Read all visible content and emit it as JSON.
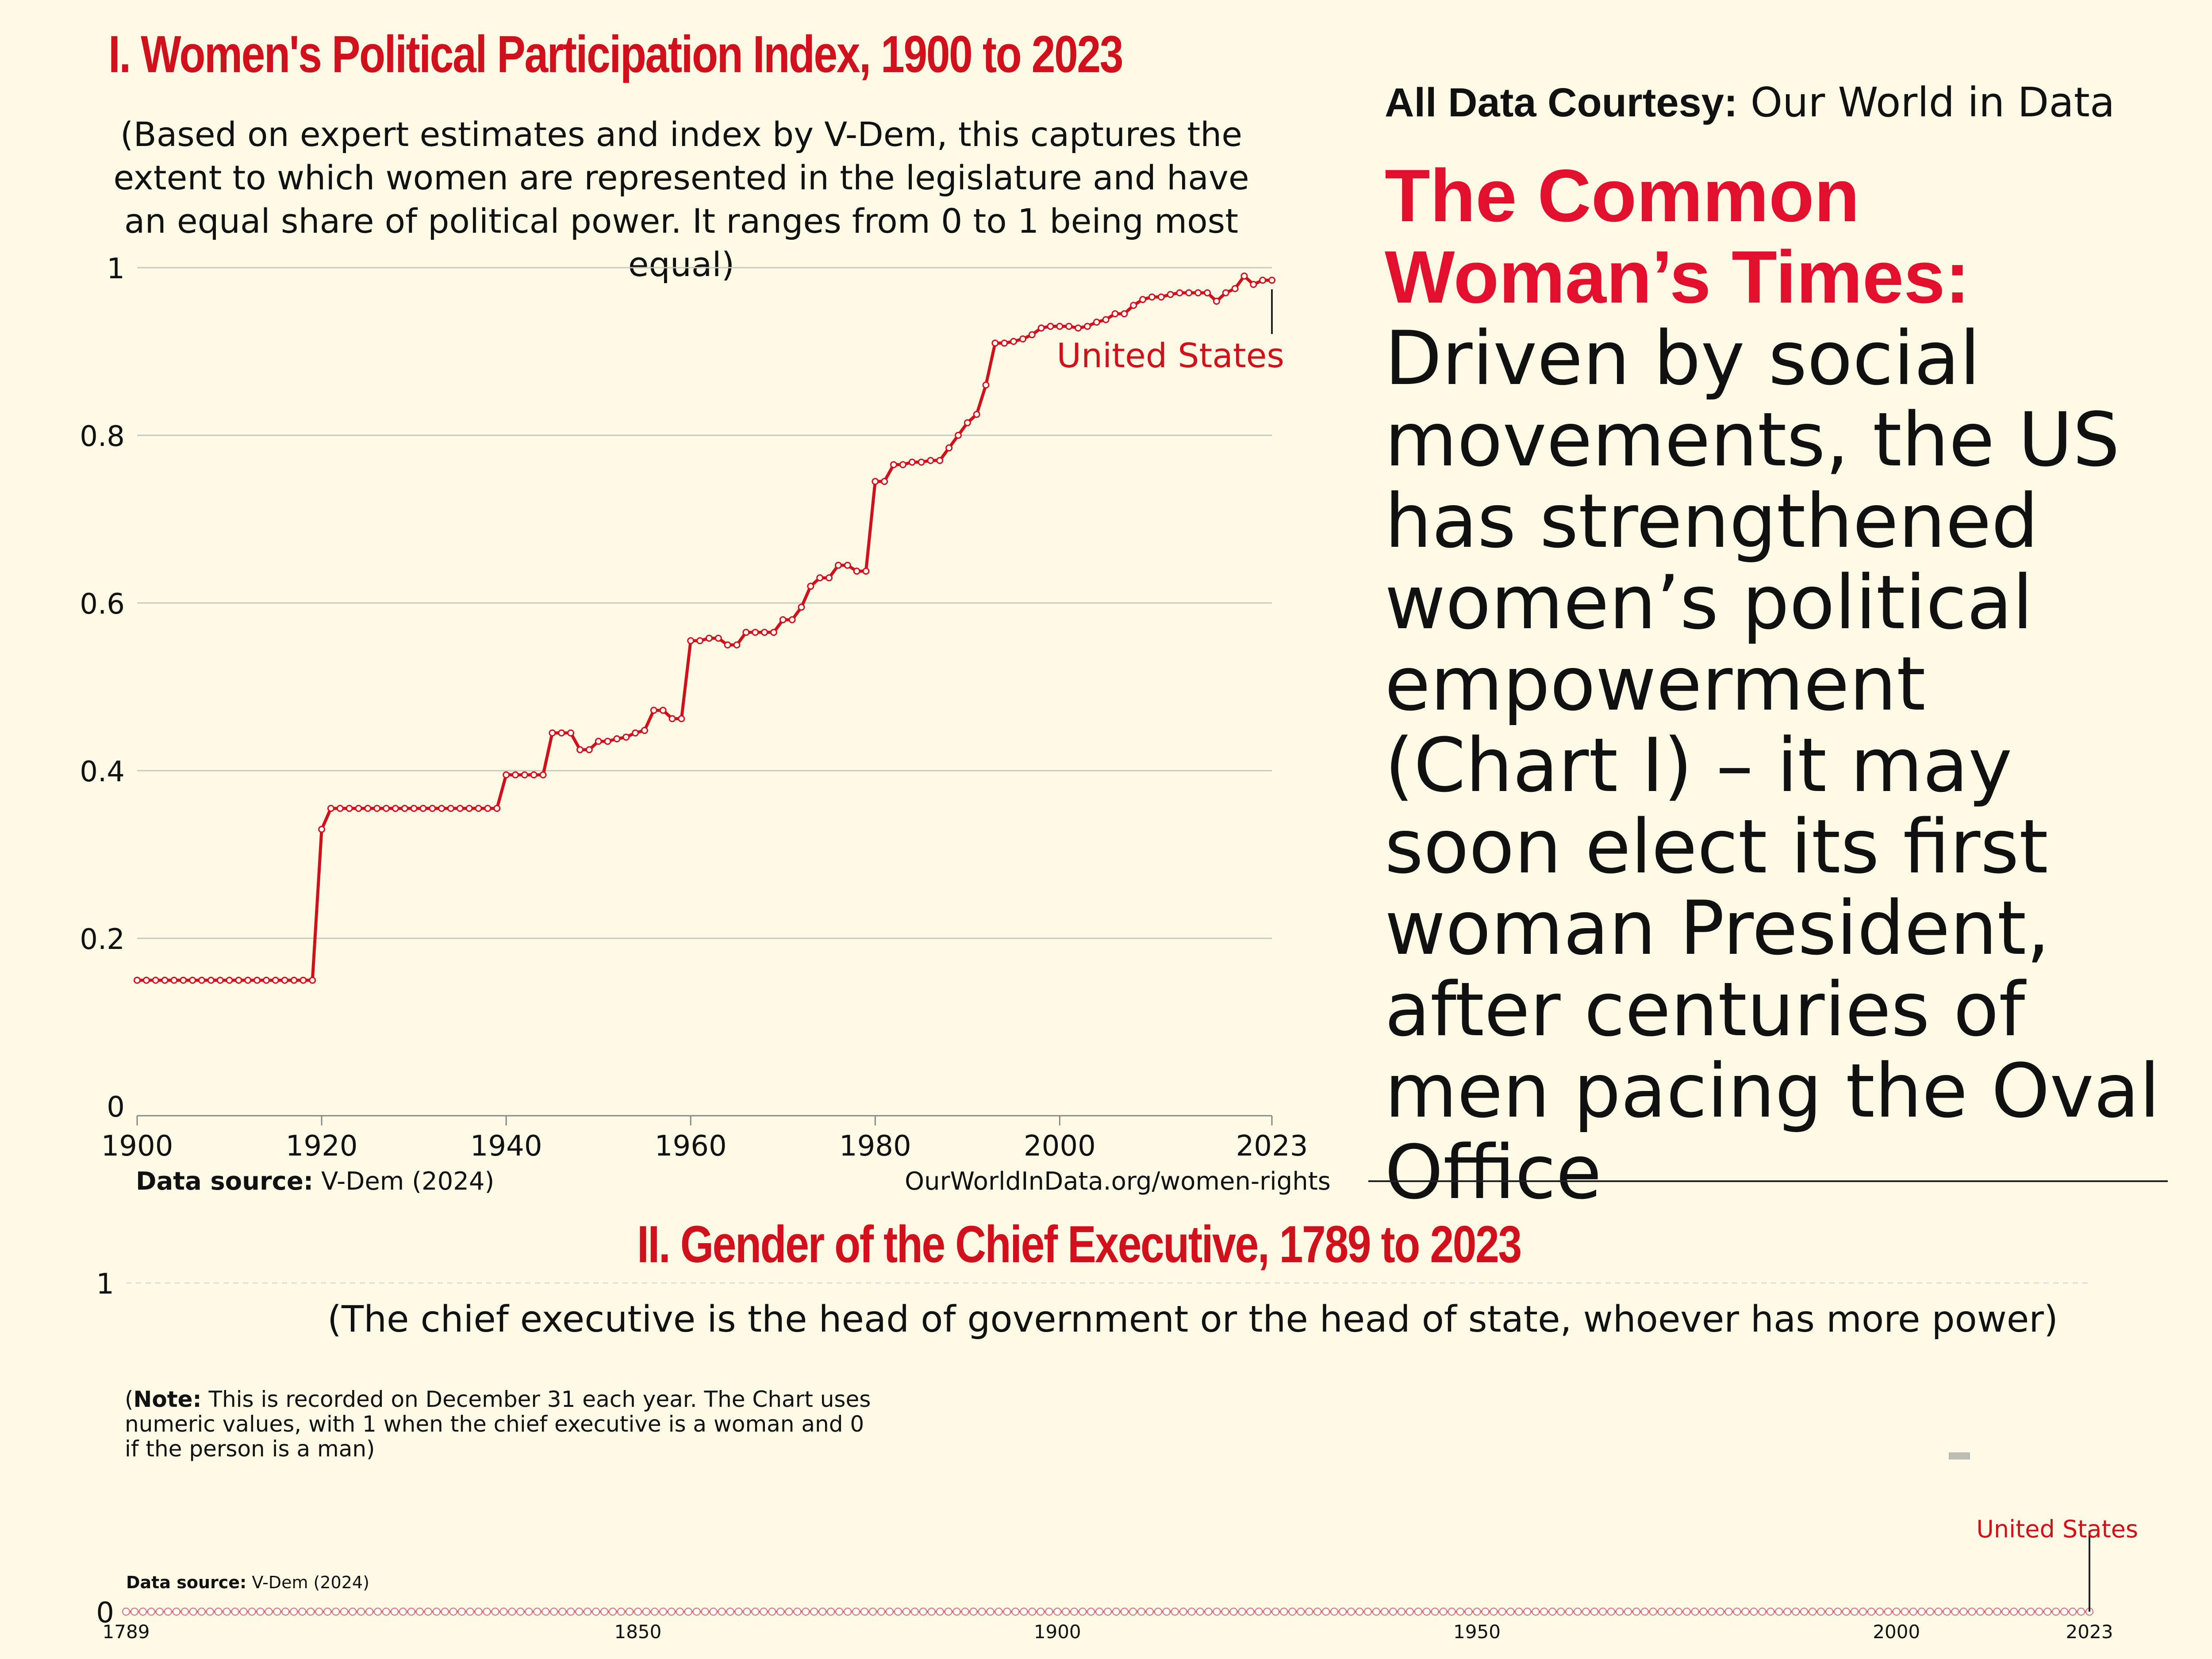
{
  "colors": {
    "accent": "#d0101a",
    "headline_red": "#e2102e",
    "background": "#fdfbe6",
    "grid": "#c8c8c0"
  },
  "courtesy": {
    "label": "All Data Courtesy:",
    "value": "Our World in Data"
  },
  "headline": {
    "red": "The Common Woman’s Times:",
    "body": "Driven by social movements, the US has strengthened women’s political empowerment (Chart I) – it may soon elect its first woman President, after centuries of men pacing the Oval Office"
  },
  "chart1": {
    "title": "I. Women's Political Participation Index, 1900 to 2023",
    "subtitle": "(Based on expert estimates and index by V-Dem, this captures the extent to which women are represented in the legislature and have an equal share of political power. It ranges from 0 to 1 being most equal)",
    "source_label": "Data source:",
    "source_value": "V-Dem (2024)",
    "url": "OurWorldInData.org/women-rights"
  },
  "chart2": {
    "title": "II. Gender of the Chief Executive, 1789 to 2023",
    "subtitle": "(The chief executive is the head of government or the head of state, whoever has more power)",
    "note_label": "Note:",
    "note_text": "This is recorded on December 31 each year. The Chart uses numeric values, with 1 when the chief executive is a woman and 0 if the person is a man)",
    "source_label": "Data source:",
    "source_value": "V-Dem (2024)"
  },
  "chart_data": [
    {
      "type": "line",
      "title": "I. Women's Political Participation Index, 1900 to 2023",
      "series": [
        {
          "name": "United States",
          "x": [
            1900,
            1901,
            1902,
            1903,
            1904,
            1905,
            1906,
            1907,
            1908,
            1909,
            1910,
            1911,
            1912,
            1913,
            1914,
            1915,
            1916,
            1917,
            1918,
            1919,
            1920,
            1921,
            1922,
            1923,
            1924,
            1925,
            1926,
            1927,
            1928,
            1929,
            1930,
            1931,
            1932,
            1933,
            1934,
            1935,
            1936,
            1937,
            1938,
            1939,
            1940,
            1941,
            1942,
            1943,
            1944,
            1945,
            1946,
            1947,
            1948,
            1949,
            1950,
            1951,
            1952,
            1953,
            1954,
            1955,
            1956,
            1957,
            1958,
            1959,
            1960,
            1961,
            1962,
            1963,
            1964,
            1965,
            1966,
            1967,
            1968,
            1969,
            1970,
            1971,
            1972,
            1973,
            1974,
            1975,
            1976,
            1977,
            1978,
            1979,
            1980,
            1981,
            1982,
            1983,
            1984,
            1985,
            1986,
            1987,
            1988,
            1989,
            1990,
            1991,
            1992,
            1993,
            1994,
            1995,
            1996,
            1997,
            1998,
            1999,
            2000,
            2001,
            2002,
            2003,
            2004,
            2005,
            2006,
            2007,
            2008,
            2009,
            2010,
            2011,
            2012,
            2013,
            2014,
            2015,
            2016,
            2017,
            2018,
            2019,
            2020,
            2021,
            2022,
            2023
          ],
          "values": [
            0.15,
            0.15,
            0.15,
            0.15,
            0.15,
            0.15,
            0.15,
            0.15,
            0.15,
            0.15,
            0.15,
            0.15,
            0.15,
            0.15,
            0.15,
            0.15,
            0.15,
            0.15,
            0.15,
            0.15,
            0.33,
            0.355,
            0.355,
            0.355,
            0.355,
            0.355,
            0.355,
            0.355,
            0.355,
            0.355,
            0.355,
            0.355,
            0.355,
            0.355,
            0.355,
            0.355,
            0.355,
            0.355,
            0.355,
            0.355,
            0.395,
            0.395,
            0.395,
            0.395,
            0.395,
            0.445,
            0.445,
            0.445,
            0.425,
            0.425,
            0.435,
            0.435,
            0.438,
            0.44,
            0.445,
            0.448,
            0.472,
            0.472,
            0.462,
            0.462,
            0.555,
            0.555,
            0.558,
            0.558,
            0.55,
            0.55,
            0.565,
            0.565,
            0.565,
            0.565,
            0.58,
            0.58,
            0.595,
            0.62,
            0.63,
            0.63,
            0.645,
            0.645,
            0.638,
            0.638,
            0.745,
            0.745,
            0.765,
            0.765,
            0.768,
            0.768,
            0.77,
            0.77,
            0.785,
            0.8,
            0.815,
            0.825,
            0.86,
            0.91,
            0.91,
            0.912,
            0.915,
            0.92,
            0.928,
            0.93,
            0.93,
            0.93,
            0.928,
            0.93,
            0.935,
            0.938,
            0.945,
            0.945,
            0.955,
            0.962,
            0.965,
            0.965,
            0.968,
            0.97,
            0.97,
            0.97,
            0.97,
            0.96,
            0.97,
            0.975,
            0.99,
            0.98,
            0.985,
            0.985
          ]
        }
      ],
      "series_label": "United States",
      "xlim": [
        1900,
        2023
      ],
      "ylim": [
        0,
        1
      ],
      "xticks": [
        1900,
        1920,
        1940,
        1960,
        1980,
        2000,
        2023
      ],
      "yticks": [
        0,
        0.2,
        0.4,
        0.6,
        0.8,
        1
      ],
      "ytick_labels": [
        "0",
        "0.2",
        "0.4",
        "0.6",
        "0.8",
        "1"
      ]
    },
    {
      "type": "line",
      "title": "II. Gender of the Chief Executive, 1789 to 2023",
      "series": [
        {
          "name": "United States",
          "x_start": 1789,
          "x_end": 2023,
          "constant_value": 0
        }
      ],
      "series_label": "United States",
      "xlim": [
        1789,
        2023
      ],
      "ylim": [
        0,
        1
      ],
      "xticks": [
        1789,
        1850,
        1900,
        1950,
        2000,
        2023
      ],
      "yticks": [
        0,
        1
      ],
      "ytick_labels": [
        "0",
        "1"
      ]
    }
  ]
}
